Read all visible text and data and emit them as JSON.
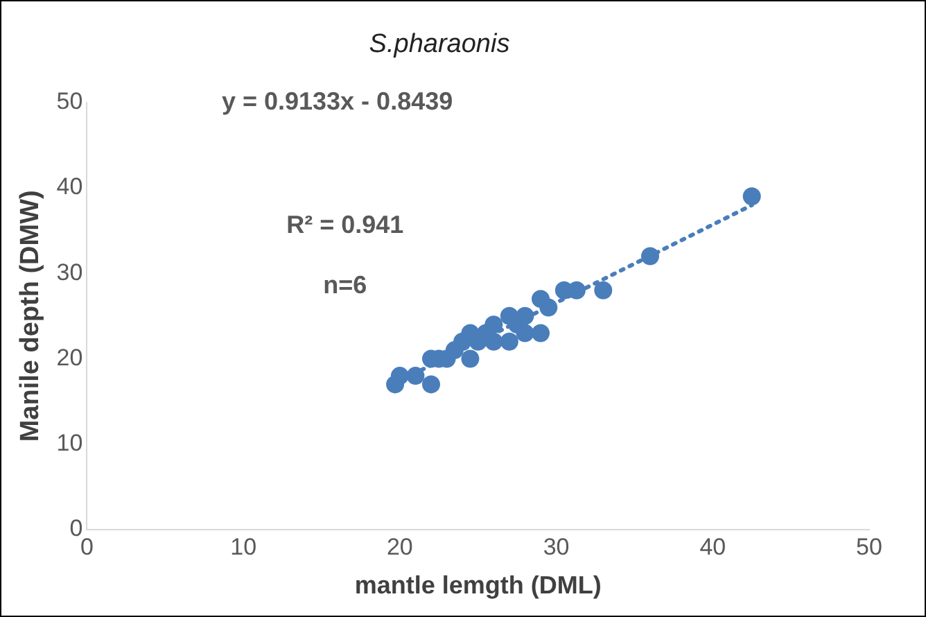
{
  "chart_data": {
    "type": "scatter",
    "title": "S.pharaonis",
    "xlabel": "mantle lemgth (DML)",
    "ylabel": "Manile depth (DMW)",
    "xlim": [
      0,
      50
    ],
    "xticks": [
      0,
      10,
      20,
      30,
      40,
      50
    ],
    "ylim": [
      0,
      50
    ],
    "yticks": [
      0,
      10,
      20,
      30,
      40,
      50
    ],
    "grid": false,
    "legend": false,
    "marker": "circle",
    "annotations": [
      "y = 0.9133x - 0.8439",
      "R² = 0.941",
      "n=6"
    ],
    "series": [
      {
        "color": "#4a7ebb",
        "x": [
          19.7,
          20,
          21,
          22,
          22,
          22.5,
          23,
          23.5,
          24,
          24.5,
          24.5,
          25,
          25.5,
          26,
          26,
          27,
          27,
          27.5,
          28,
          28,
          29,
          29,
          29.5,
          30.5,
          31.3,
          33,
          36,
          42.5
        ],
        "values": [
          17,
          18,
          18,
          17,
          20,
          20,
          20,
          21,
          22,
          23,
          20,
          22,
          23,
          24,
          22,
          25,
          22,
          24,
          25,
          23,
          27,
          23,
          26,
          28,
          28,
          28,
          32,
          39
        ]
      },
      {
        "type": "line",
        "color": "#4a7ebb",
        "line_style": "dotted",
        "marker": "none",
        "x": [
          19.7,
          42.5
        ],
        "values": [
          17.148,
          37.97
        ]
      }
    ]
  }
}
